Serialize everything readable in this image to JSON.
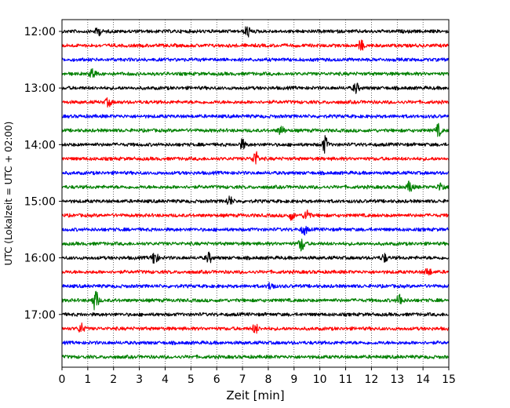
{
  "chart_data": {
    "type": "line",
    "xlabel": "Zeit  [min]",
    "ylabel": "UTC (Lokalzeit = UTC + 02:00)",
    "xlim": [
      0,
      15
    ],
    "x_ticks": [
      0,
      1,
      2,
      3,
      4,
      5,
      6,
      7,
      8,
      9,
      10,
      11,
      12,
      13,
      14,
      15
    ],
    "y_tick_labels": [
      "12:00",
      "13:00",
      "14:00",
      "15:00",
      "16:00",
      "17:00"
    ],
    "grid": "vertical-dotted",
    "trace_interval_minutes": 15,
    "trace_count": 24,
    "colors": [
      "#000000",
      "#ff0000",
      "#0000ff",
      "#008000"
    ],
    "events": [
      {
        "trace": 0,
        "x": 7.2,
        "amp": 0.7
      },
      {
        "trace": 0,
        "x": 1.4,
        "amp": 0.5
      },
      {
        "trace": 1,
        "x": 11.6,
        "amp": 0.6
      },
      {
        "trace": 3,
        "x": 1.2,
        "amp": 0.7
      },
      {
        "trace": 4,
        "x": 11.4,
        "amp": 0.6
      },
      {
        "trace": 5,
        "x": 1.8,
        "amp": 0.5
      },
      {
        "trace": 7,
        "x": 8.5,
        "amp": 0.6
      },
      {
        "trace": 7,
        "x": 14.6,
        "amp": 0.7
      },
      {
        "trace": 8,
        "x": 10.2,
        "amp": 1.0
      },
      {
        "trace": 8,
        "x": 7.0,
        "amp": 0.6
      },
      {
        "trace": 9,
        "x": 7.5,
        "amp": 0.9
      },
      {
        "trace": 11,
        "x": 13.5,
        "amp": 0.7
      },
      {
        "trace": 11,
        "x": 14.7,
        "amp": 0.6
      },
      {
        "trace": 12,
        "x": 6.5,
        "amp": 0.6
      },
      {
        "trace": 13,
        "x": 9.5,
        "amp": 0.8
      },
      {
        "trace": 13,
        "x": 8.9,
        "amp": 0.5
      },
      {
        "trace": 14,
        "x": 9.4,
        "amp": 0.6
      },
      {
        "trace": 15,
        "x": 9.3,
        "amp": 0.9
      },
      {
        "trace": 16,
        "x": 3.6,
        "amp": 0.9
      },
      {
        "trace": 16,
        "x": 5.7,
        "amp": 0.6
      },
      {
        "trace": 16,
        "x": 12.5,
        "amp": 0.5
      },
      {
        "trace": 17,
        "x": 14.2,
        "amp": 0.5
      },
      {
        "trace": 18,
        "x": 8.1,
        "amp": 0.5
      },
      {
        "trace": 19,
        "x": 1.3,
        "amp": 1.3
      },
      {
        "trace": 19,
        "x": 13.1,
        "amp": 0.8
      },
      {
        "trace": 21,
        "x": 0.75,
        "amp": 0.6
      },
      {
        "trace": 21,
        "x": 7.5,
        "amp": 0.6
      }
    ]
  }
}
